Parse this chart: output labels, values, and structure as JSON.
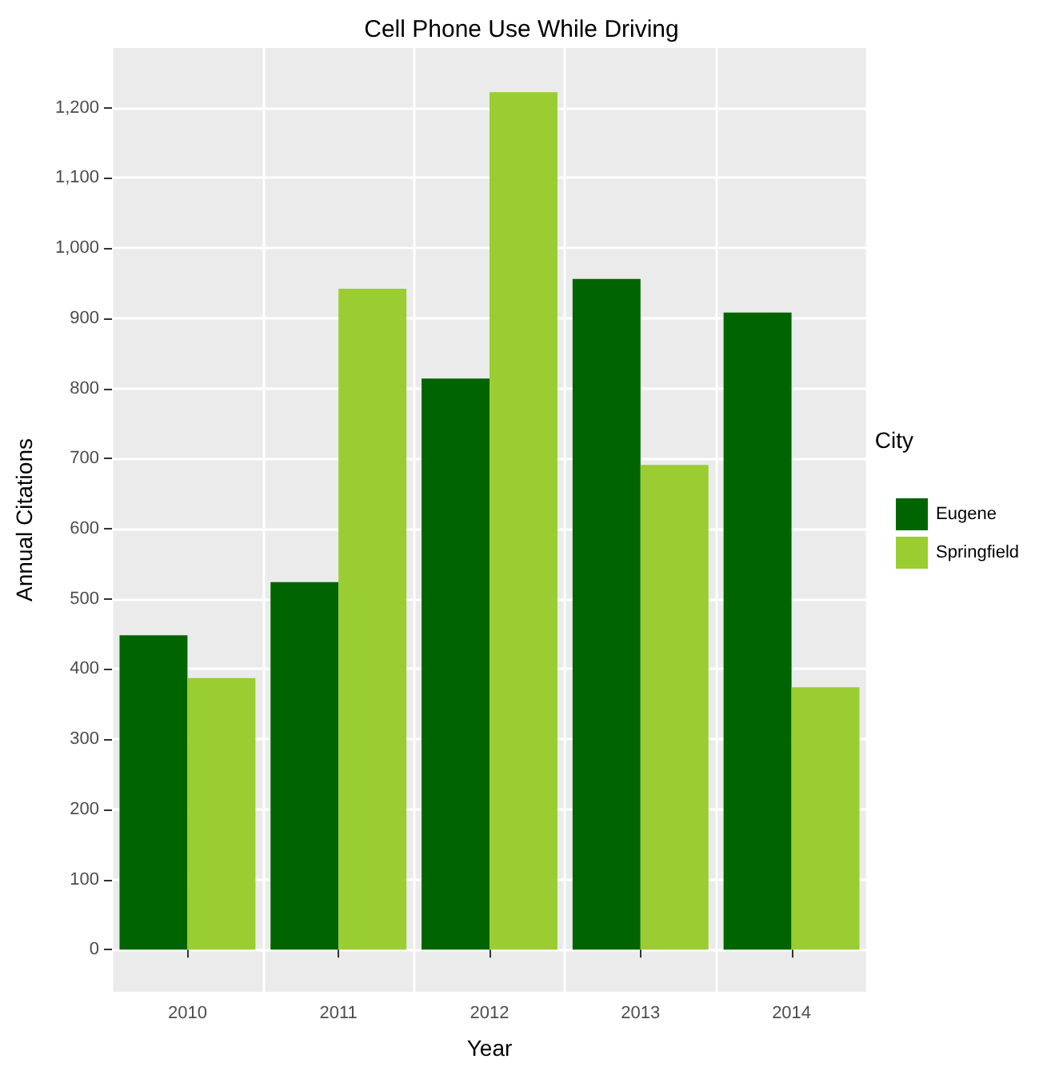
{
  "chart_data": {
    "type": "bar",
    "title": "Cell Phone Use While Driving",
    "xlabel": "Year",
    "ylabel": "Annual Citations",
    "legend_title": "City",
    "categories": [
      "2010",
      "2011",
      "2012",
      "2013",
      "2014"
    ],
    "series": [
      {
        "name": "Eugene",
        "color": "#006400",
        "values": [
          448,
          524,
          814,
          956,
          908
        ]
      },
      {
        "name": "Springfield",
        "color": "#9acd32",
        "values": [
          387,
          942,
          1222,
          691,
          374
        ]
      }
    ],
    "ylim": [
      -60,
      1285
    ],
    "yticks": [
      {
        "value": 0,
        "label": "0"
      },
      {
        "value": 100,
        "label": "100"
      },
      {
        "value": 200,
        "label": "200"
      },
      {
        "value": 300,
        "label": "300"
      },
      {
        "value": 400,
        "label": "400"
      },
      {
        "value": 500,
        "label": "500"
      },
      {
        "value": 600,
        "label": "600"
      },
      {
        "value": 700,
        "label": "700"
      },
      {
        "value": 800,
        "label": "800"
      },
      {
        "value": 900,
        "label": "900"
      },
      {
        "value": 1000,
        "label": "1,000"
      },
      {
        "value": 1100,
        "label": "1,100"
      },
      {
        "value": 1200,
        "label": "1,200"
      }
    ],
    "grid": true,
    "legend": "right"
  }
}
